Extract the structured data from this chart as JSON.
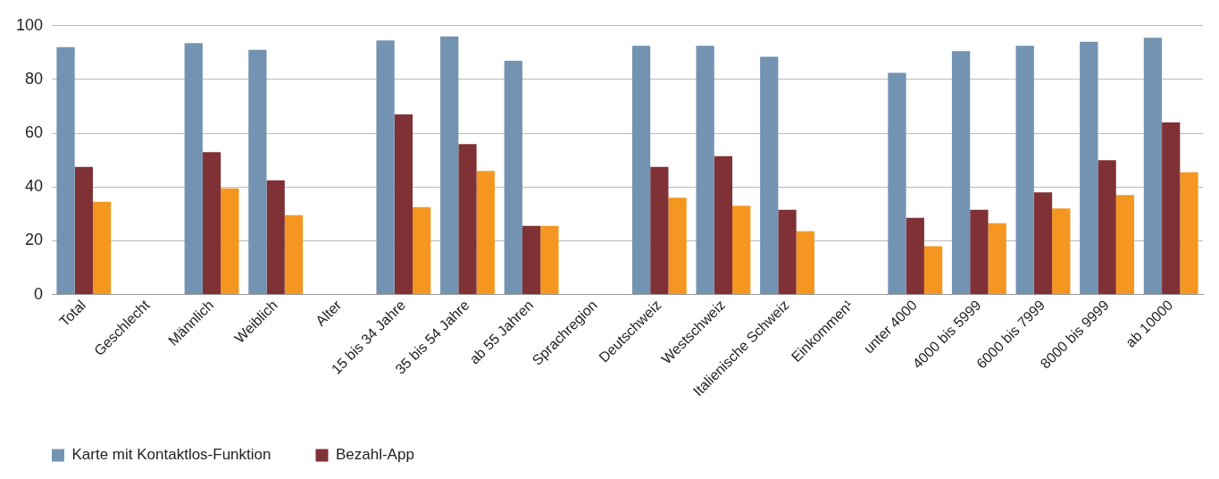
{
  "chart_data": {
    "type": "bar",
    "categories": [
      "Total",
      "Geschlecht",
      "Männlich",
      "Weiblich",
      "Alter",
      "15 bis 34 Jahre",
      "35 bis 54 Jahre",
      "ab 55 Jahren",
      "Sprachregion",
      "Deutschweiz",
      "Westschweiz",
      "Italienische Schweiz",
      "Einkommen¹",
      "unter 4000",
      "4000 bis 5999",
      "6000 bis 7999",
      "8000 bis 9999",
      "ab 10000"
    ],
    "series": [
      {
        "name": "Karte mit Kontaktlos-Funktion",
        "color": "#7393b3",
        "values": [
          92,
          null,
          93.5,
          91,
          null,
          94.5,
          96,
          87,
          null,
          92.5,
          92.5,
          88.5,
          null,
          82.5,
          90.5,
          92.5,
          94,
          95.5
        ]
      },
      {
        "name": "Bezahl-App",
        "color": "#7f3135",
        "values": [
          47.5,
          null,
          53,
          42.5,
          null,
          67,
          56,
          25.5,
          null,
          47.5,
          51.5,
          31.5,
          null,
          28.5,
          31.5,
          38,
          50,
          64
        ]
      },
      {
        "color": "#f4961f",
        "values": [
          34.5,
          null,
          39.5,
          29.5,
          null,
          32.5,
          46,
          25.5,
          null,
          36,
          33,
          23.5,
          null,
          18,
          26.5,
          32,
          37,
          45.5
        ]
      }
    ],
    "ylim": [
      0,
      100
    ],
    "yticks": [
      0,
      20,
      40,
      60,
      80,
      100
    ],
    "grid": "y",
    "legend": "bottom left"
  }
}
